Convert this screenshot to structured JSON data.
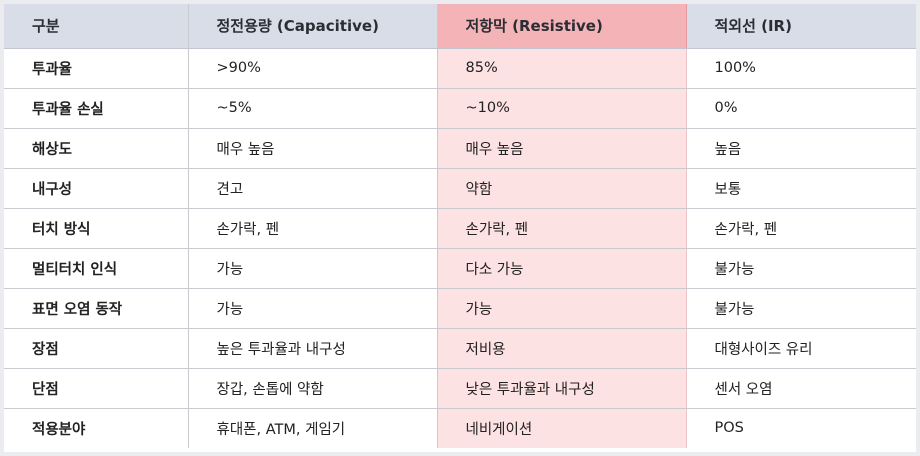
{
  "table": {
    "headers": [
      "구분",
      "정전용량 (Capacitive)",
      "저항막 (Resistive)",
      "적외선 (IR)"
    ],
    "highlight_column": 2,
    "highlight_header_color": "#f3b3b7",
    "highlight_cell_color": "#fde2e4",
    "header_color": "#d9dde7",
    "rows": [
      [
        "투과율",
        ">90%",
        "85%",
        "100%"
      ],
      [
        "투과율 손실",
        "~5%",
        "~10%",
        "0%"
      ],
      [
        "해상도",
        "매우 높음",
        "매우 높음",
        "높음"
      ],
      [
        "내구성",
        "견고",
        "약함",
        "보통"
      ],
      [
        "터치 방식",
        "손가락, 펜",
        "손가락, 펜",
        "손가락, 펜"
      ],
      [
        "멀티터치 인식",
        "가능",
        "다소 가능",
        "불가능"
      ],
      [
        "표면 오염 동작",
        "가능",
        "가능",
        "불가능"
      ],
      [
        "장점",
        "높은 투과율과 내구성",
        "저비용",
        "대형사이즈 유리"
      ],
      [
        "단점",
        "장갑, 손톱에 약함",
        "낮은 투과율과 내구성",
        "센서 오염"
      ],
      [
        "적용분야",
        "휴대폰, ATM, 게임기",
        "네비게이션",
        "POS"
      ]
    ]
  }
}
